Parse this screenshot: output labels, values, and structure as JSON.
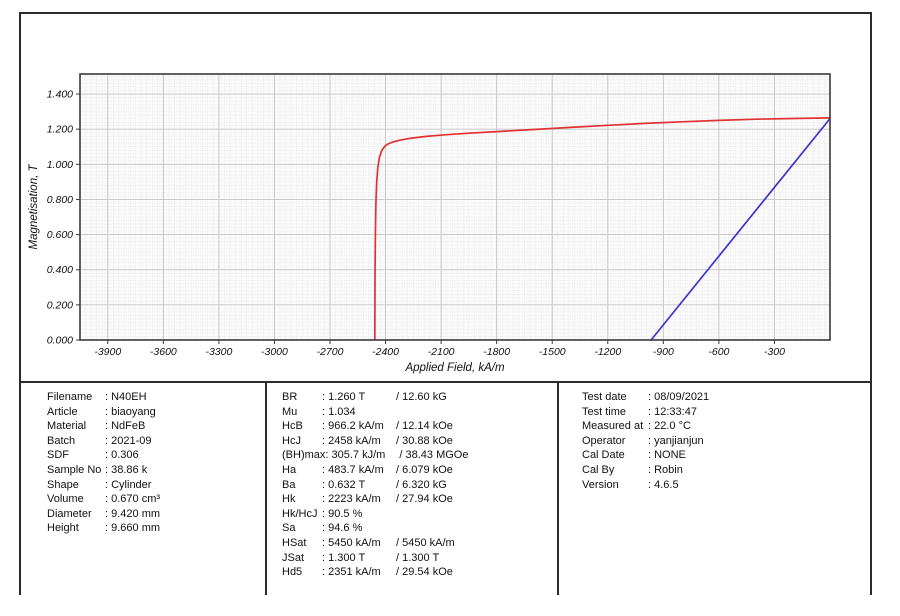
{
  "chart_data": {
    "type": "line",
    "title": "",
    "xlabel": "Applied Field, kA/m",
    "ylabel": "Magnetisation, T",
    "xlim": [
      -4050,
      0
    ],
    "ylim": [
      0,
      1.514
    ],
    "grid": true,
    "legend": "none",
    "x_tick_values": [
      -3900,
      -3600,
      -3300,
      -3000,
      -2700,
      -2400,
      -2100,
      -1800,
      -1500,
      -1200,
      -900,
      -600,
      -300
    ],
    "x_tick_labels": [
      "-3900",
      "-3600",
      "-3300",
      "-3000",
      "-2700",
      "-2400",
      "-2100",
      "-1800",
      "-1500",
      "-1200",
      "-900",
      "-600",
      "-300"
    ],
    "y_tick_values": [
      0,
      0.2,
      0.4,
      0.6,
      0.8,
      1.0,
      1.2,
      1.4
    ],
    "y_tick_labels": [
      "0.000",
      "0.200",
      "0.400",
      "0.600",
      "0.800",
      "1.000",
      "1.200",
      "1.400"
    ],
    "x_minor_step": 30,
    "y_minor_step": 0.02,
    "series": [
      {
        "id": "intrinsic-jh-curve",
        "color": "#e03232",
        "points": [
          [
            -2458,
            0
          ],
          [
            -2457,
            0.35
          ],
          [
            -2455,
            0.6
          ],
          [
            -2452,
            0.78
          ],
          [
            -2448,
            0.9
          ],
          [
            -2442,
            0.98
          ],
          [
            -2433,
            1.04
          ],
          [
            -2420,
            1.08
          ],
          [
            -2404,
            1.103
          ],
          [
            -2385,
            1.117
          ],
          [
            -2360,
            1.127
          ],
          [
            -2320,
            1.138
          ],
          [
            -2260,
            1.149
          ],
          [
            -2180,
            1.159
          ],
          [
            -2080,
            1.168
          ],
          [
            -1950,
            1.177
          ],
          [
            -1800,
            1.186
          ],
          [
            -1600,
            1.198
          ],
          [
            -1400,
            1.21
          ],
          [
            -1200,
            1.222
          ],
          [
            -1000,
            1.233
          ],
          [
            -800,
            1.242
          ],
          [
            -600,
            1.25
          ],
          [
            -400,
            1.257
          ],
          [
            -200,
            1.261
          ],
          [
            0,
            1.264
          ]
        ]
      },
      {
        "id": "normal-bh-line",
        "color": "#3b35cc",
        "points": [
          [
            -966.2,
            0
          ],
          [
            0,
            1.26
          ]
        ]
      }
    ]
  },
  "info": {
    "sample": {
      "rows": [
        [
          "Filename",
          ": N40EH"
        ],
        [
          "Article",
          ": biaoyang"
        ],
        [
          "Material",
          ": NdFeB"
        ],
        [
          "Batch",
          ": 2021-09"
        ],
        [
          "SDF",
          ": 0.306"
        ],
        [
          "Sample No",
          ": 38.86 k"
        ],
        [
          "Shape",
          ": Cylinder"
        ],
        [
          "Volume",
          ": 0.670 cm³"
        ],
        [
          "Diameter",
          ": 9.420 mm"
        ],
        [
          "Height",
          ": 9.660 mm"
        ]
      ]
    },
    "results": {
      "rows": [
        [
          "BR",
          ": 1.260 T",
          "/ 12.60 kG"
        ],
        [
          "Mu",
          ": 1.034",
          ""
        ],
        [
          "HcB",
          ": 966.2 kA/m",
          "/ 12.14 kOe"
        ],
        [
          "HcJ",
          ": 2458 kA/m",
          "/ 30.88 kOe"
        ],
        [
          "(BH)max",
          ": 305.7 kJ/m",
          "/ 38.43 MGOe"
        ],
        [
          "Ha",
          ": 483.7 kA/m",
          "/ 6.079 kOe"
        ],
        [
          "Ba",
          ": 0.632 T",
          "/ 6.320 kG"
        ],
        [
          "Hk",
          ": 2223 kA/m",
          "/ 27.94 kOe"
        ],
        [
          "Hk/HcJ",
          ": 90.5 %",
          ""
        ],
        [
          "Sa",
          ": 94.6 %",
          ""
        ],
        [
          "HSat",
          ": 5450 kA/m",
          "/ 5450 kA/m"
        ],
        [
          "JSat",
          ": 1.300 T",
          "/ 1.300 T"
        ],
        [
          "Hd5",
          ": 2351 kA/m",
          "/ 29.54 kOe"
        ]
      ]
    },
    "test": {
      "rows": [
        [
          "Test date",
          ": 08/09/2021"
        ],
        [
          "Test time",
          ": 12:33:47"
        ],
        [
          "Measured at",
          ": 22.0 °C"
        ],
        [
          "Operator",
          ": yanjianjun"
        ],
        [
          "Cal Date",
          ": NONE"
        ],
        [
          "Cal By",
          ": Robin"
        ],
        [
          "Version",
          ": 4.6.5"
        ]
      ]
    }
  }
}
